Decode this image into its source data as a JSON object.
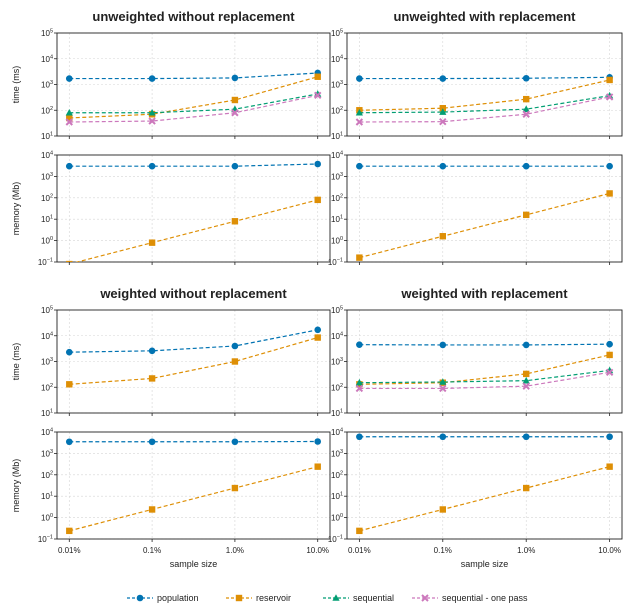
{
  "legend": {
    "position": "bottom",
    "entries": [
      {
        "name": "population",
        "color": "#0173b2",
        "marker": "circle"
      },
      {
        "name": "reservoir",
        "color": "#de8f05",
        "marker": "square"
      },
      {
        "name": "sequential",
        "color": "#029e73",
        "marker": "triangle"
      },
      {
        "name": "sequential - one pass",
        "color": "#cc78bc",
        "marker": "x"
      }
    ]
  },
  "shared_xlabel": "sample size",
  "chart_data": [
    {
      "type": "line",
      "title": "unweighted without replacement",
      "xlabel": "",
      "ylabel": "time (ms)",
      "yscale": "log",
      "ylim_exp": [
        1,
        5
      ],
      "grid": true,
      "categories": [
        "0.01%",
        "0.1%",
        "1.0%",
        "10.0%"
      ],
      "series": [
        {
          "name": "population",
          "values": [
            1700,
            1700,
            1800,
            2800
          ]
        },
        {
          "name": "reservoir",
          "values": [
            50,
            70,
            250,
            2000
          ]
        },
        {
          "name": "sequential",
          "values": [
            80,
            80,
            110,
            430
          ]
        },
        {
          "name": "sequential - one pass",
          "values": [
            35,
            38,
            80,
            380
          ]
        }
      ]
    },
    {
      "type": "line",
      "title": "unweighted with replacement",
      "xlabel": "",
      "ylabel": "",
      "yscale": "log",
      "ylim_exp": [
        1,
        5
      ],
      "grid": true,
      "categories": [
        "0.01%",
        "0.1%",
        "1.0%",
        "10.0%"
      ],
      "series": [
        {
          "name": "population",
          "values": [
            1700,
            1700,
            1750,
            1900
          ]
        },
        {
          "name": "reservoir",
          "values": [
            100,
            120,
            270,
            1500
          ]
        },
        {
          "name": "sequential",
          "values": [
            80,
            85,
            110,
            370
          ]
        },
        {
          "name": "sequential - one pass",
          "values": [
            35,
            36,
            70,
            330
          ]
        }
      ]
    },
    {
      "type": "line",
      "title": "",
      "xlabel": "",
      "ylabel": "memory (Mb)",
      "yscale": "log",
      "ylim_exp": [
        -1,
        4
      ],
      "grid": true,
      "categories": [
        "0.01%",
        "0.1%",
        "1.0%",
        "10.0%"
      ],
      "series": [
        {
          "name": "population",
          "values": [
            3000,
            3000,
            3000,
            3800
          ]
        },
        {
          "name": "reservoir",
          "values": [
            0.08,
            0.8,
            8,
            80
          ]
        }
      ]
    },
    {
      "type": "line",
      "title": "",
      "xlabel": "",
      "ylabel": "",
      "yscale": "log",
      "ylim_exp": [
        -1,
        4
      ],
      "grid": true,
      "categories": [
        "0.01%",
        "0.1%",
        "1.0%",
        "10.0%"
      ],
      "series": [
        {
          "name": "population",
          "values": [
            3000,
            3000,
            3000,
            3000
          ]
        },
        {
          "name": "reservoir",
          "values": [
            0.16,
            1.6,
            16,
            160
          ]
        }
      ]
    },
    {
      "type": "line",
      "title": "weighted without replacement",
      "xlabel": "",
      "ylabel": "time (ms)",
      "yscale": "log",
      "ylim_exp": [
        1,
        5
      ],
      "grid": true,
      "categories": [
        "0.01%",
        "0.1%",
        "1.0%",
        "10.0%"
      ],
      "series": [
        {
          "name": "population",
          "values": [
            2300,
            2600,
            4000,
            17000
          ]
        },
        {
          "name": "reservoir",
          "values": [
            130,
            220,
            1000,
            8500
          ]
        }
      ]
    },
    {
      "type": "line",
      "title": "weighted with replacement",
      "xlabel": "",
      "ylabel": "",
      "yscale": "log",
      "ylim_exp": [
        1,
        5
      ],
      "grid": true,
      "categories": [
        "0.01%",
        "0.1%",
        "1.0%",
        "10.0%"
      ],
      "series": [
        {
          "name": "population",
          "values": [
            4500,
            4400,
            4400,
            4700
          ]
        },
        {
          "name": "reservoir",
          "values": [
            130,
            150,
            330,
            1800
          ]
        },
        {
          "name": "sequential",
          "values": [
            150,
            160,
            180,
            450
          ]
        },
        {
          "name": "sequential - one pass",
          "values": [
            90,
            90,
            110,
            380
          ]
        }
      ]
    },
    {
      "type": "line",
      "title": "",
      "xlabel": "sample size",
      "ylabel": "memory (Mb)",
      "yscale": "log",
      "ylim_exp": [
        -1,
        4
      ],
      "grid": true,
      "categories": [
        "0.01%",
        "0.1%",
        "1.0%",
        "10.0%"
      ],
      "series": [
        {
          "name": "population",
          "values": [
            3500,
            3500,
            3500,
            3600
          ]
        },
        {
          "name": "reservoir",
          "values": [
            0.24,
            2.4,
            24,
            240
          ]
        }
      ]
    },
    {
      "type": "line",
      "title": "",
      "xlabel": "sample size",
      "ylabel": "",
      "yscale": "log",
      "ylim_exp": [
        -1,
        4
      ],
      "grid": true,
      "categories": [
        "0.01%",
        "0.1%",
        "1.0%",
        "10.0%"
      ],
      "series": [
        {
          "name": "population",
          "values": [
            6000,
            6000,
            6000,
            6000
          ]
        },
        {
          "name": "reservoir",
          "values": [
            0.24,
            2.4,
            24,
            240
          ]
        }
      ]
    }
  ]
}
